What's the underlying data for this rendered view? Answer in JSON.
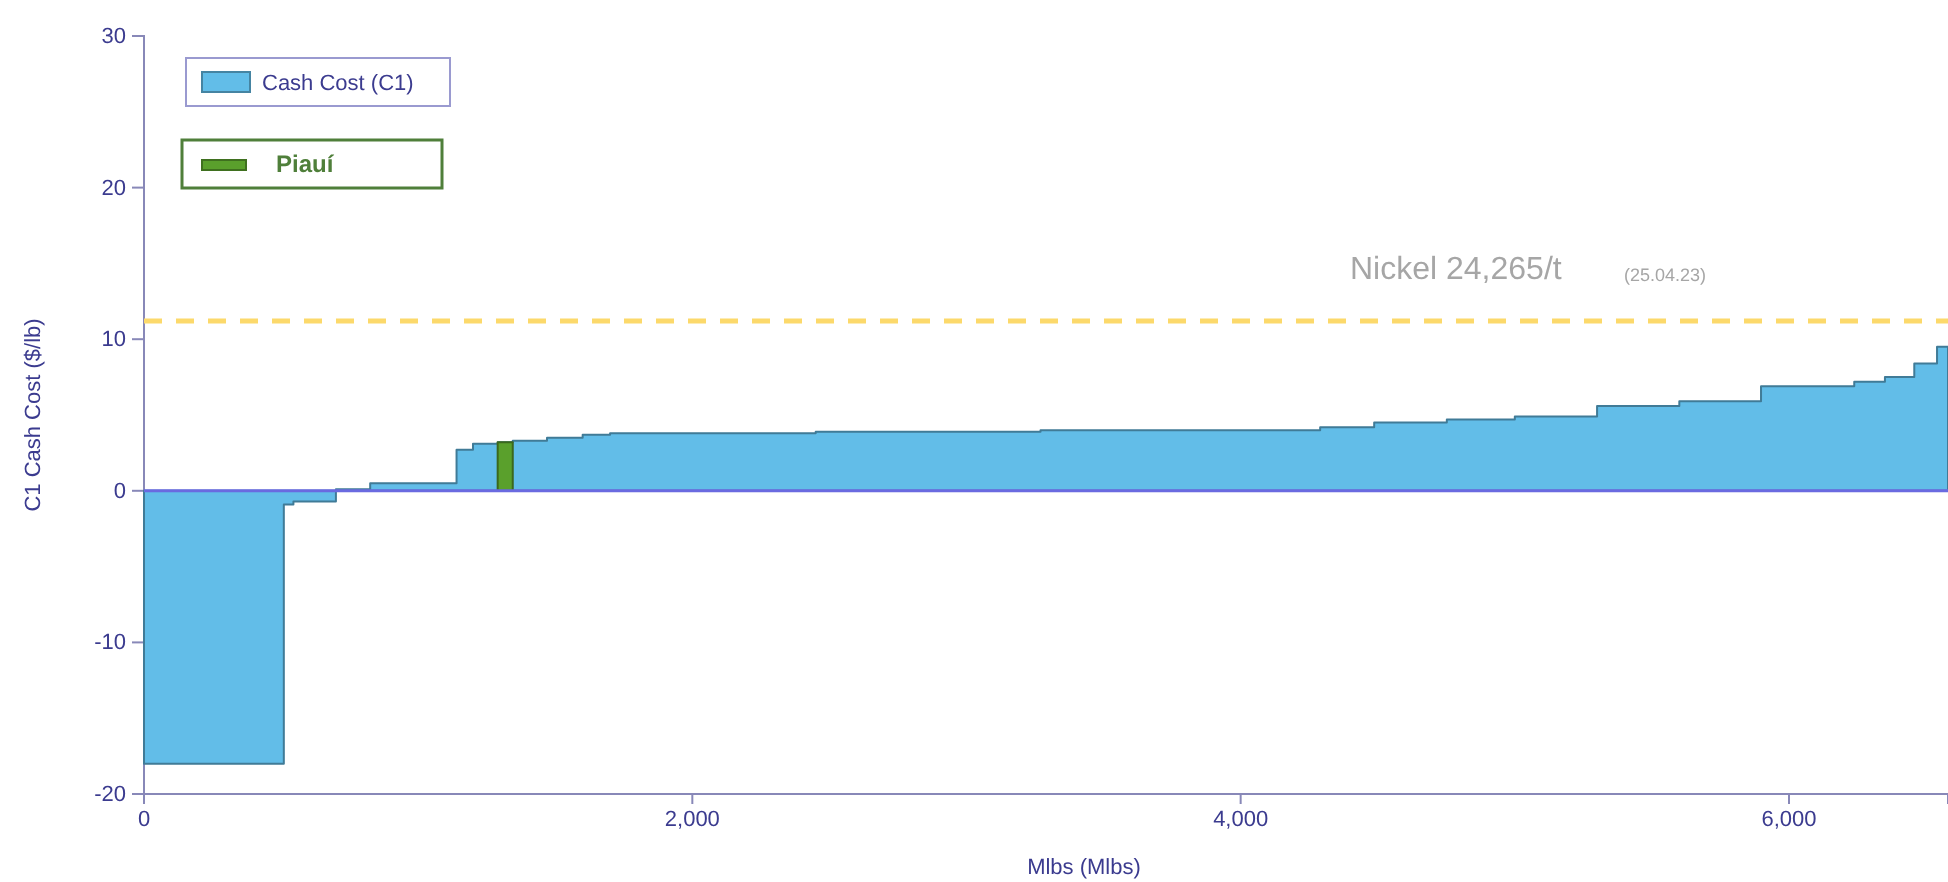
{
  "chart_data": {
    "type": "area",
    "xlabel": "Mlbs (Mlbs)",
    "ylabel": "C1 Cash Cost ($/lb)",
    "xlim": [
      0,
      6580
    ],
    "xticks": [
      0,
      {
        "value": 2000,
        "label": "2,000"
      },
      {
        "value": 4000,
        "label": "4,000"
      },
      {
        "value": 6000,
        "label": "6,000"
      }
    ],
    "ylim": [
      -20,
      30
    ],
    "yticks": [
      -20,
      -10,
      0,
      10,
      20,
      30
    ],
    "series": [
      {
        "name": "Cash Cost (C1)",
        "color": "#62bde8",
        "x": [
          0,
          510,
          510,
          545,
          545,
          700,
          700,
          825,
          825,
          1140,
          1140,
          1200,
          1200,
          1290,
          1290,
          1345,
          1345,
          1470,
          1470,
          1600,
          1600,
          1700,
          1700,
          2450,
          2450,
          3270,
          3270,
          4290,
          4290,
          4487,
          4487,
          4752,
          4752,
          5000,
          5000,
          5300,
          5300,
          5600,
          5600,
          5898,
          5898,
          6238,
          6238,
          6350,
          6350,
          6457,
          6457,
          6540,
          6540,
          6580
        ],
        "values": [
          -18,
          -18,
          -0.9,
          -0.9,
          -0.7,
          -0.7,
          0.1,
          0.1,
          0.5,
          0.5,
          2.7,
          2.7,
          3.1,
          3.1,
          3.2,
          3.2,
          3.3,
          3.3,
          3.5,
          3.5,
          3.7,
          3.7,
          3.8,
          3.8,
          3.9,
          3.9,
          4.0,
          4.0,
          4.2,
          4.2,
          4.5,
          4.5,
          4.7,
          4.7,
          4.9,
          4.9,
          5.6,
          5.6,
          5.9,
          5.9,
          6.9,
          6.9,
          7.2,
          7.2,
          7.5,
          7.5,
          8.4,
          8.4,
          9.5,
          9.5
        ]
      },
      {
        "name": "Piauí",
        "color": "#5aa02c",
        "x": [
          1290,
          1345
        ],
        "values": [
          3.2,
          3.2
        ]
      }
    ],
    "ref_lines": [
      {
        "axis": "y",
        "value": 11.2,
        "label": "Nickel 24,265/t",
        "color": "#fcd96b",
        "line_style": "dashed"
      },
      {
        "axis": "y",
        "value": 0,
        "color": "#6a6ae0",
        "line_style": "solid"
      }
    ],
    "annotations": [
      "(25.04.23)"
    ],
    "legend": "top left"
  }
}
